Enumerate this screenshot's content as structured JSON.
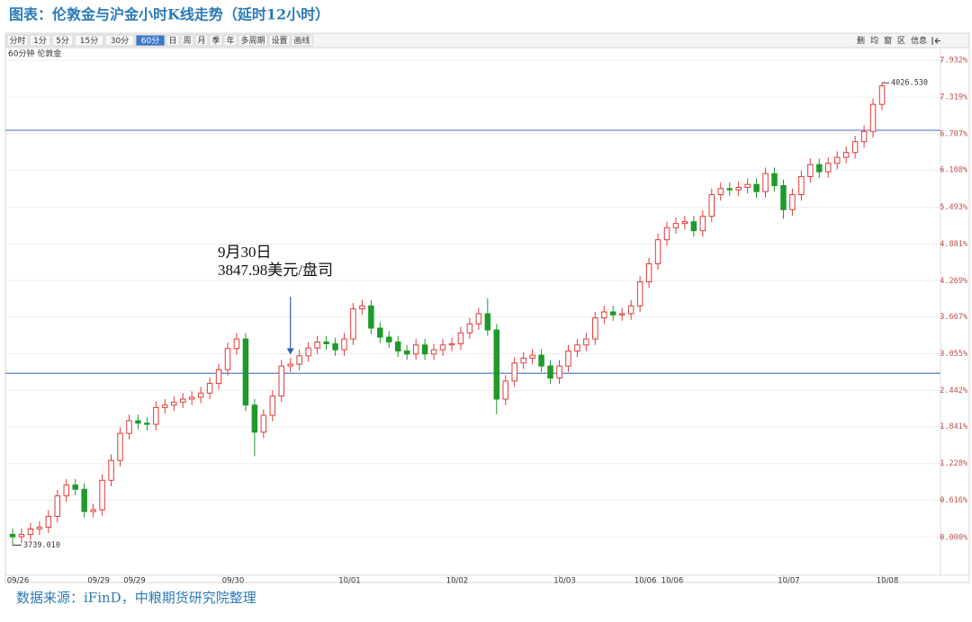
{
  "caption": "图表：伦敦金与沪金小时K线走势（延时12小时）",
  "source": "数据来源：iFinD，中粮期货研究院整理",
  "toolbar": {
    "left": [
      "分时",
      "1分",
      "5分",
      "15分",
      "30分",
      "60分",
      "日",
      "周",
      "月",
      "季",
      "年",
      "多周期",
      "设置",
      "画线"
    ],
    "right": [
      "删",
      "均",
      "窗",
      "区",
      "信息"
    ],
    "selected": 5
  },
  "chart_data": {
    "type": "candlestick",
    "subtitle": "60分钟  伦敦金",
    "up_color": "#e03a3a",
    "down_color": "#1e9a2a",
    "hline_color": "#5a7fc0",
    "hlines": [
      6.77,
      2.73
    ],
    "ylim": [
      -0.63,
      8.04
    ],
    "yticks": [
      {
        "value": 0,
        "label": "0.000%"
      },
      {
        "value": 0.616,
        "label": "0.616%"
      },
      {
        "value": 1.228,
        "label": "1.228%"
      },
      {
        "value": 1.841,
        "label": "1.841%"
      },
      {
        "value": 2.442,
        "label": "2.442%"
      },
      {
        "value": 3.055,
        "label": "3.055%"
      },
      {
        "value": 3.667,
        "label": "3.667%"
      },
      {
        "value": 4.269,
        "label": "4.269%"
      },
      {
        "value": 4.881,
        "label": "4.881%"
      },
      {
        "value": 5.493,
        "label": "5.493%"
      },
      {
        "value": 6.108,
        "label": "6.108%"
      },
      {
        "value": 6.707,
        "label": "6.707%"
      },
      {
        "value": 7.319,
        "label": "7.319%"
      },
      {
        "value": 7.932,
        "label": "7.932%"
      }
    ],
    "grid": true,
    "xticks": [
      {
        "value": 0,
        "label": "09/26"
      },
      {
        "value": 9,
        "label": "09/29"
      },
      {
        "value": 13,
        "label": "09/29"
      },
      {
        "value": 24,
        "label": "09/30"
      },
      {
        "value": 37,
        "label": "10/01"
      },
      {
        "value": 49,
        "label": "10/02"
      },
      {
        "value": 61,
        "label": "10/03"
      },
      {
        "value": 70,
        "label": "10/06"
      },
      {
        "value": 73,
        "label": "10/06"
      },
      {
        "value": 86,
        "label": "10/07"
      },
      {
        "value": 97,
        "label": "10/08"
      }
    ],
    "max_label": "4026.530",
    "min_label": "3739.010",
    "annotation": {
      "index": 31,
      "lines": [
        "9月30日",
        "3847.98美元/盘司"
      ]
    },
    "open": [
      0.05,
      0.01,
      0.05,
      0.14,
      0.17,
      0.35,
      0.69,
      0.87,
      0.8,
      0.43,
      0.46,
      0.95,
      1.28,
      1.73,
      1.94,
      1.9,
      1.88,
      2.16,
      2.2,
      2.25,
      2.3,
      2.33,
      2.4,
      2.56,
      2.79,
      3.14,
      3.3,
      2.2,
      1.75,
      2.03,
      2.35,
      2.85,
      2.88,
      3.02,
      3.15,
      3.25,
      3.22,
      3.12,
      3.3,
      3.8,
      3.85,
      3.48,
      3.33,
      3.25,
      3.1,
      3.05,
      3.2,
      3.05,
      3.12,
      3.2,
      3.22,
      3.4,
      3.55,
      3.72,
      3.45,
      2.3,
      2.6,
      2.9,
      2.98,
      3.03,
      2.85,
      2.65,
      2.85,
      3.1,
      3.2,
      3.3,
      3.65,
      3.75,
      3.7,
      3.72,
      3.85,
      4.25,
      4.55,
      4.95,
      5.15,
      5.22,
      5.25,
      5.1,
      5.34,
      5.7,
      5.8,
      5.78,
      5.82,
      5.87,
      5.75,
      6.05,
      5.85,
      5.45,
      5.7,
      6.0,
      6.2,
      6.08,
      6.22,
      6.32,
      6.4,
      6.58,
      6.75,
      7.2
    ],
    "high": [
      0.15,
      0.15,
      0.24,
      0.27,
      0.45,
      0.79,
      0.97,
      0.97,
      0.9,
      0.56,
      1.05,
      1.38,
      1.83,
      2.04,
      2.04,
      2.0,
      2.26,
      2.3,
      2.35,
      2.4,
      2.43,
      2.5,
      2.66,
      2.89,
      3.24,
      3.4,
      3.4,
      2.3,
      2.13,
      2.45,
      2.95,
      2.98,
      3.12,
      3.25,
      3.35,
      3.35,
      3.32,
      3.4,
      3.9,
      3.95,
      3.95,
      3.58,
      3.43,
      3.35,
      3.2,
      3.3,
      3.3,
      3.22,
      3.3,
      3.32,
      3.5,
      3.65,
      3.82,
      3.98,
      3.55,
      2.7,
      3.0,
      3.08,
      3.13,
      3.13,
      2.95,
      2.95,
      3.2,
      3.3,
      3.4,
      3.75,
      3.85,
      3.85,
      3.82,
      3.95,
      4.35,
      4.65,
      5.05,
      5.25,
      5.32,
      5.35,
      5.35,
      5.44,
      5.8,
      5.9,
      5.9,
      5.92,
      5.97,
      5.97,
      6.15,
      6.15,
      5.95,
      5.8,
      6.1,
      6.3,
      6.3,
      6.32,
      6.42,
      6.5,
      6.68,
      6.85,
      7.3,
      7.56
    ],
    "low": [
      -0.13,
      -0.09,
      -0.05,
      0.04,
      0.07,
      0.25,
      0.59,
      0.7,
      0.33,
      0.33,
      0.36,
      0.85,
      1.18,
      1.63,
      1.8,
      1.78,
      1.78,
      2.06,
      2.1,
      2.15,
      2.2,
      2.23,
      2.3,
      2.46,
      2.69,
      3.04,
      2.1,
      1.35,
      1.65,
      1.93,
      2.25,
      2.75,
      2.78,
      2.92,
      3.05,
      3.12,
      3.02,
      3.02,
      3.2,
      3.7,
      3.38,
      3.23,
      3.15,
      3.0,
      2.95,
      2.95,
      2.95,
      2.95,
      3.02,
      3.1,
      3.12,
      3.3,
      3.45,
      3.35,
      2.05,
      2.2,
      2.5,
      2.8,
      2.88,
      2.75,
      2.55,
      2.55,
      2.75,
      3.0,
      3.1,
      3.2,
      3.55,
      3.6,
      3.6,
      3.62,
      3.75,
      4.15,
      4.45,
      4.85,
      5.05,
      5.12,
      5.0,
      5.0,
      5.24,
      5.6,
      5.68,
      5.68,
      5.72,
      5.65,
      5.65,
      5.75,
      5.3,
      5.35,
      5.6,
      5.9,
      5.98,
      5.98,
      6.12,
      6.22,
      6.3,
      6.48,
      6.65,
      7.1
    ],
    "close": [
      0.01,
      0.05,
      0.14,
      0.17,
      0.35,
      0.69,
      0.87,
      0.8,
      0.43,
      0.46,
      0.95,
      1.28,
      1.73,
      1.94,
      1.9,
      1.88,
      2.16,
      2.2,
      2.25,
      2.3,
      2.33,
      2.4,
      2.56,
      2.79,
      3.14,
      3.3,
      2.2,
      1.75,
      2.03,
      2.35,
      2.85,
      2.88,
      3.02,
      3.15,
      3.25,
      3.22,
      3.12,
      3.3,
      3.8,
      3.85,
      3.48,
      3.33,
      3.25,
      3.1,
      3.05,
      3.2,
      3.05,
      3.12,
      3.2,
      3.22,
      3.4,
      3.55,
      3.72,
      3.45,
      2.3,
      2.6,
      2.9,
      2.98,
      3.03,
      2.85,
      2.65,
      2.85,
      3.1,
      3.2,
      3.3,
      3.65,
      3.75,
      3.7,
      3.72,
      3.85,
      4.25,
      4.55,
      4.95,
      5.15,
      5.22,
      5.25,
      5.1,
      5.34,
      5.7,
      5.8,
      5.78,
      5.82,
      5.87,
      5.75,
      6.05,
      5.85,
      5.45,
      5.7,
      6.0,
      6.2,
      6.08,
      6.22,
      6.32,
      6.4,
      6.58,
      6.75,
      7.2,
      7.51
    ]
  }
}
